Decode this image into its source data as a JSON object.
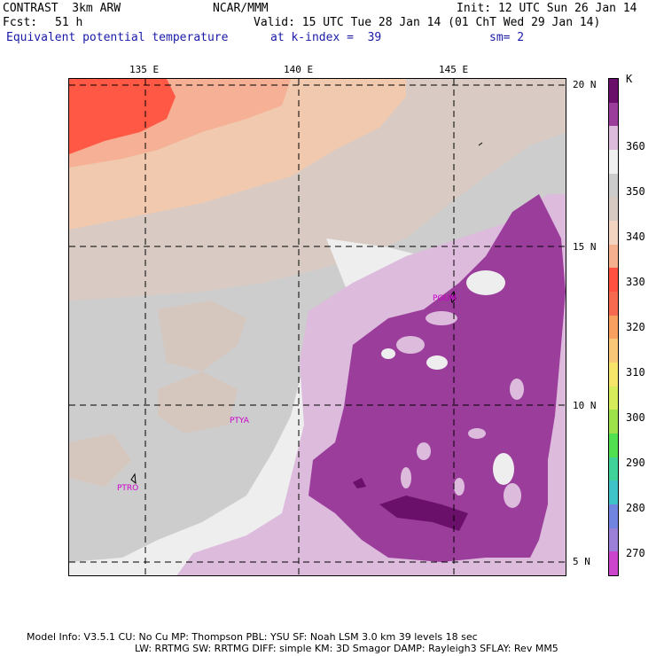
{
  "header": {
    "model": "CONTRAST  3km ARW",
    "org": "NCAR/MMM",
    "init": "Init: 12 UTC Sun 26 Jan 14",
    "fcst_label": "Fcst:",
    "fcst_value": "51 h",
    "valid": "Valid: 15 UTC Tue 28 Jan 14 (01 ChT Wed 29 Jan 14)",
    "field": "Equivalent potential temperature",
    "level": "at k-index =  39",
    "smooth": "sm= 2"
  },
  "map": {
    "lon_labels": [
      "135 E",
      "140 E",
      "145 E"
    ],
    "lat_labels": [
      "20 N",
      "15 N",
      "10 N",
      "5 N"
    ],
    "stations": [
      "PGUM",
      "PTYA",
      "PTRO"
    ]
  },
  "colorbar": {
    "unit": "K",
    "ticks": [
      "360",
      "350",
      "340",
      "330",
      "320",
      "310",
      "300",
      "290",
      "280",
      "270"
    ],
    "colors": [
      "#cc44cc",
      "#9c7fd6",
      "#6f85e0",
      "#3fc3c8",
      "#3fd39a",
      "#50e050",
      "#9ee24a",
      "#d7ec5a",
      "#f7e56a",
      "#f8c878",
      "#f8a060",
      "#f76a50",
      "#ff5040",
      "#f5b090",
      "#f2d4c0",
      "#d6cac3",
      "#cccccc",
      "#f0f0f0",
      "#ddbbdd",
      "#9b3d9b",
      "#6a0f6a"
    ]
  },
  "footer": {
    "line1": "Model Info: V3.5.1    CU: No Cu    MP: Thompson    PBL: YSU       SF: Noah LSM     3.0 km   39 levels    18 sec",
    "line2": "LW: RRTMG    SW: RRTMG   DIFF: simple KM: 3D Smagor DAMP: Rayleigh3   SFLAY: Rev MM5"
  }
}
